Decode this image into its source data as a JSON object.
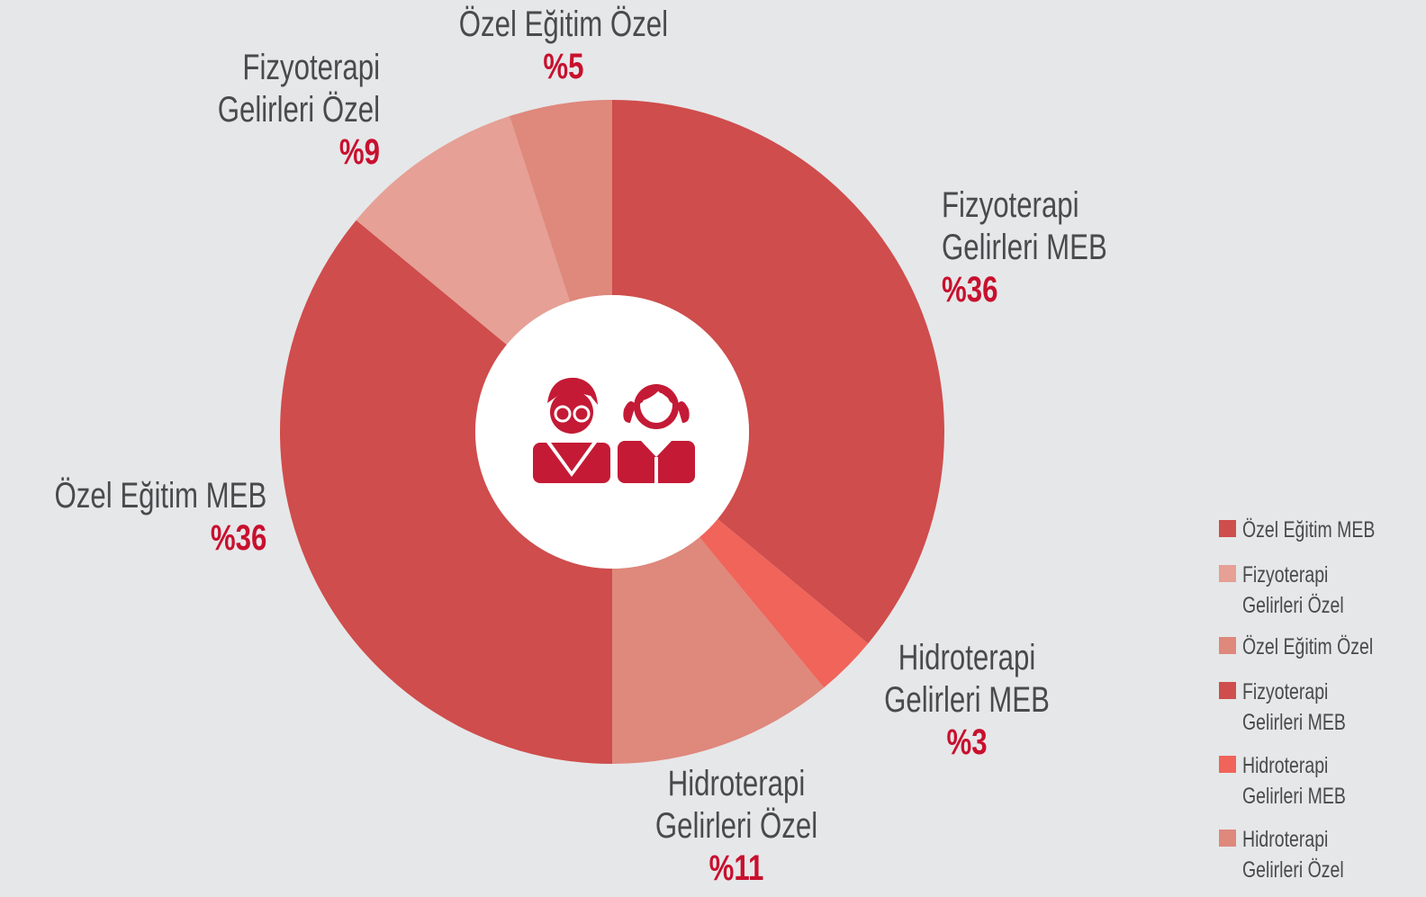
{
  "chart_data": {
    "type": "donut",
    "categories": [
      "Özel Eğitim MEB",
      "Fizyoterapi Gelirleri Özel",
      "Özel Eğitim Özel",
      "Fizyoterapi Gelirleri MEB",
      "Hidroterapi Gelirleri MEB",
      "Hidroterapi Gelirleri Özel"
    ],
    "values": [
      36,
      9,
      5,
      36,
      3,
      11
    ],
    "value_labels": [
      "%36",
      "%9",
      "%5",
      "%36",
      "%3",
      "%11"
    ],
    "colors": [
      "#cf4d4c",
      "#e6a095",
      "#df887c",
      "#cf4d4c",
      "#f0645a",
      "#df887c"
    ],
    "legend": "right"
  }
}
